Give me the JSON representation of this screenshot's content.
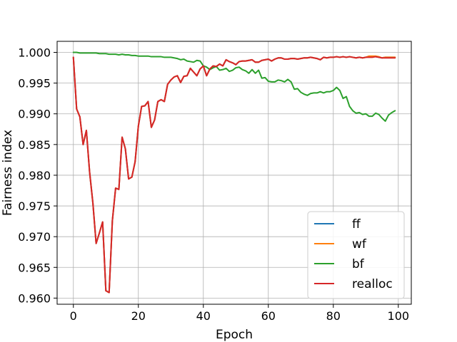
{
  "chart_data": {
    "type": "line",
    "title": "",
    "xlabel": "Epoch",
    "ylabel": "Fairness index",
    "xlim": [
      -5,
      104
    ],
    "ylim": [
      0.959,
      1.0018
    ],
    "xticks": [
      0,
      20,
      40,
      60,
      80,
      100
    ],
    "yticks": [
      0.96,
      0.965,
      0.97,
      0.975,
      0.98,
      0.985,
      0.99,
      0.995,
      1.0
    ],
    "ytick_labels": [
      "0.960",
      "0.965",
      "0.970",
      "0.975",
      "0.980",
      "0.985",
      "0.990",
      "0.995",
      "1.000"
    ],
    "grid": true,
    "legend_position": "lower-right",
    "series": [
      {
        "name": "ff",
        "color": "#1f77b4",
        "x": [
          0,
          1,
          2,
          3,
          4,
          5,
          6,
          7,
          8,
          9,
          10,
          11,
          12,
          13,
          14,
          15,
          16,
          17,
          18,
          19,
          20,
          21,
          22,
          23,
          24,
          25,
          26,
          27,
          28,
          29,
          30,
          31,
          32,
          33,
          34,
          35,
          36,
          37,
          38,
          39,
          40,
          41,
          42,
          43,
          44,
          45,
          46,
          47,
          48,
          49,
          50,
          51,
          52,
          53,
          54,
          55,
          56,
          57,
          58,
          59,
          60,
          61,
          62,
          63,
          64,
          65,
          66,
          67,
          68,
          69,
          70,
          71,
          72,
          73,
          74,
          75,
          76,
          77,
          78,
          79,
          80,
          81,
          82,
          83,
          84,
          85,
          86,
          87,
          88,
          89,
          90,
          91,
          92,
          93,
          94,
          95,
          96,
          97,
          98,
          99
        ],
        "y": [
          0.9992,
          0.9908,
          0.9895,
          0.985,
          0.9873,
          0.9805,
          0.9755,
          0.9689,
          0.9706,
          0.9724,
          0.9612,
          0.9609,
          0.9726,
          0.9779,
          0.9777,
          0.9862,
          0.9843,
          0.9794,
          0.9797,
          0.9822,
          0.988,
          0.9912,
          0.9913,
          0.992,
          0.9878,
          0.989,
          0.992,
          0.9923,
          0.992,
          0.9948,
          0.9955,
          0.996,
          0.9962,
          0.9951,
          0.9961,
          0.9962,
          0.9974,
          0.9968,
          0.9962,
          0.9973,
          0.9978,
          0.9962,
          0.9973,
          0.9978,
          0.9977,
          0.9981,
          0.9978,
          0.9988,
          0.9985,
          0.9983,
          0.998,
          0.9985,
          0.9986,
          0.9986,
          0.9987,
          0.9988,
          0.9984,
          0.9984,
          0.9987,
          0.9988,
          0.9989,
          0.9986,
          0.9989,
          0.9991,
          0.9991,
          0.9989,
          0.9989,
          0.999,
          0.999,
          0.9989,
          0.999,
          0.9991,
          0.9991,
          0.9992,
          0.9991,
          0.999,
          0.9988,
          0.9992,
          0.9991,
          0.9992,
          0.9992,
          0.9993,
          0.9992,
          0.9993,
          0.9992,
          0.9993,
          0.9992,
          0.9991,
          0.9992,
          0.9991,
          0.9992,
          0.9993,
          0.9993,
          0.9993,
          0.9992,
          0.9991,
          0.9992,
          0.9992,
          0.9992,
          0.9992
        ]
      },
      {
        "name": "wf",
        "color": "#ff7f0e",
        "x": [
          0,
          1,
          2,
          3,
          4,
          5,
          6,
          7,
          8,
          9,
          10,
          11,
          12,
          13,
          14,
          15,
          16,
          17,
          18,
          19,
          20,
          21,
          22,
          23,
          24,
          25,
          26,
          27,
          28,
          29,
          30,
          31,
          32,
          33,
          34,
          35,
          36,
          37,
          38,
          39,
          40,
          41,
          42,
          43,
          44,
          45,
          46,
          47,
          48,
          49,
          50,
          51,
          52,
          53,
          54,
          55,
          56,
          57,
          58,
          59,
          60,
          61,
          62,
          63,
          64,
          65,
          66,
          67,
          68,
          69,
          70,
          71,
          72,
          73,
          74,
          75,
          76,
          77,
          78,
          79,
          80,
          81,
          82,
          83,
          84,
          85,
          86,
          87,
          88,
          89,
          90,
          91,
          92,
          93,
          94,
          95,
          96,
          97,
          98,
          99
        ],
        "y": [
          0.9992,
          0.9908,
          0.9895,
          0.985,
          0.9873,
          0.9805,
          0.9755,
          0.9689,
          0.9706,
          0.9724,
          0.9612,
          0.9609,
          0.9726,
          0.9779,
          0.9777,
          0.9862,
          0.9843,
          0.9794,
          0.9797,
          0.9822,
          0.988,
          0.9912,
          0.9913,
          0.992,
          0.9878,
          0.989,
          0.992,
          0.9923,
          0.992,
          0.9948,
          0.9955,
          0.996,
          0.9962,
          0.9951,
          0.9961,
          0.9962,
          0.9974,
          0.9968,
          0.9962,
          0.9973,
          0.9978,
          0.9962,
          0.9973,
          0.9978,
          0.9977,
          0.9981,
          0.9978,
          0.9988,
          0.9985,
          0.9983,
          0.998,
          0.9985,
          0.9986,
          0.9986,
          0.9987,
          0.9988,
          0.9984,
          0.9984,
          0.9987,
          0.9988,
          0.9989,
          0.9986,
          0.9989,
          0.9991,
          0.9991,
          0.9989,
          0.9989,
          0.999,
          0.999,
          0.9989,
          0.999,
          0.9991,
          0.9991,
          0.9992,
          0.9991,
          0.999,
          0.9988,
          0.9992,
          0.9991,
          0.9992,
          0.9992,
          0.9993,
          0.9992,
          0.9993,
          0.9992,
          0.9993,
          0.9992,
          0.9991,
          0.9992,
          0.9991,
          0.9992,
          0.9994,
          0.9994,
          0.9994,
          0.9993,
          0.9991,
          0.9992,
          0.9992,
          0.9992,
          0.9992
        ]
      },
      {
        "name": "bf",
        "color": "#2ca02c",
        "x": [
          0,
          1,
          2,
          3,
          4,
          5,
          6,
          7,
          8,
          9,
          10,
          11,
          12,
          13,
          14,
          15,
          16,
          17,
          18,
          19,
          20,
          21,
          22,
          23,
          24,
          25,
          26,
          27,
          28,
          29,
          30,
          31,
          32,
          33,
          34,
          35,
          36,
          37,
          38,
          39,
          40,
          41,
          42,
          43,
          44,
          45,
          46,
          47,
          48,
          49,
          50,
          51,
          52,
          53,
          54,
          55,
          56,
          57,
          58,
          59,
          60,
          61,
          62,
          63,
          64,
          65,
          66,
          67,
          68,
          69,
          70,
          71,
          72,
          73,
          74,
          75,
          76,
          77,
          78,
          79,
          80,
          81,
          82,
          83,
          84,
          85,
          86,
          87,
          88,
          89,
          90,
          91,
          92,
          93,
          94,
          95,
          96,
          97,
          98,
          99
        ],
        "y": [
          1.0,
          1.0,
          0.9999,
          0.9999,
          0.9999,
          0.9999,
          0.9999,
          0.9999,
          0.9998,
          0.9998,
          0.9998,
          0.9997,
          0.9997,
          0.9997,
          0.9996,
          0.9997,
          0.9996,
          0.9996,
          0.9995,
          0.9995,
          0.9994,
          0.9994,
          0.9994,
          0.9994,
          0.9993,
          0.9993,
          0.9993,
          0.9993,
          0.9992,
          0.9992,
          0.9992,
          0.9991,
          0.999,
          0.9988,
          0.9989,
          0.9986,
          0.9985,
          0.9984,
          0.9987,
          0.9986,
          0.9978,
          0.9976,
          0.9972,
          0.9975,
          0.9977,
          0.9971,
          0.9972,
          0.9974,
          0.9969,
          0.9971,
          0.9975,
          0.9976,
          0.9972,
          0.997,
          0.9966,
          0.9972,
          0.9966,
          0.9971,
          0.9958,
          0.9959,
          0.9953,
          0.9952,
          0.9952,
          0.9955,
          0.9954,
          0.9952,
          0.9956,
          0.9952,
          0.994,
          0.9941,
          0.9935,
          0.9932,
          0.993,
          0.9933,
          0.9934,
          0.9934,
          0.9936,
          0.9934,
          0.9936,
          0.9936,
          0.9938,
          0.9943,
          0.9938,
          0.9925,
          0.9928,
          0.9912,
          0.9905,
          0.9901,
          0.9902,
          0.9899,
          0.99,
          0.9896,
          0.9896,
          0.9901,
          0.9899,
          0.9893,
          0.9888,
          0.9898,
          0.9902,
          0.9905
        ]
      },
      {
        "name": "realloc",
        "color": "#d62728",
        "x": [
          0,
          1,
          2,
          3,
          4,
          5,
          6,
          7,
          8,
          9,
          10,
          11,
          12,
          13,
          14,
          15,
          16,
          17,
          18,
          19,
          20,
          21,
          22,
          23,
          24,
          25,
          26,
          27,
          28,
          29,
          30,
          31,
          32,
          33,
          34,
          35,
          36,
          37,
          38,
          39,
          40,
          41,
          42,
          43,
          44,
          45,
          46,
          47,
          48,
          49,
          50,
          51,
          52,
          53,
          54,
          55,
          56,
          57,
          58,
          59,
          60,
          61,
          62,
          63,
          64,
          65,
          66,
          67,
          68,
          69,
          70,
          71,
          72,
          73,
          74,
          75,
          76,
          77,
          78,
          79,
          80,
          81,
          82,
          83,
          84,
          85,
          86,
          87,
          88,
          89,
          90,
          91,
          92,
          93,
          94,
          95,
          96,
          97,
          98,
          99
        ],
        "y": [
          0.9992,
          0.9908,
          0.9895,
          0.985,
          0.9873,
          0.9805,
          0.9755,
          0.9689,
          0.9706,
          0.9724,
          0.9612,
          0.9609,
          0.9726,
          0.9779,
          0.9777,
          0.9862,
          0.9843,
          0.9794,
          0.9797,
          0.9822,
          0.988,
          0.9912,
          0.9913,
          0.992,
          0.9878,
          0.989,
          0.992,
          0.9923,
          0.992,
          0.9948,
          0.9955,
          0.996,
          0.9962,
          0.9951,
          0.9961,
          0.9962,
          0.9974,
          0.9968,
          0.9962,
          0.9973,
          0.9978,
          0.9962,
          0.9973,
          0.9978,
          0.9977,
          0.9981,
          0.9978,
          0.9988,
          0.9985,
          0.9983,
          0.998,
          0.9985,
          0.9986,
          0.9986,
          0.9987,
          0.9988,
          0.9984,
          0.9984,
          0.9987,
          0.9988,
          0.9989,
          0.9986,
          0.9989,
          0.9991,
          0.9991,
          0.9989,
          0.9989,
          0.999,
          0.999,
          0.9989,
          0.999,
          0.9991,
          0.9991,
          0.9992,
          0.9991,
          0.999,
          0.9988,
          0.9992,
          0.9991,
          0.9992,
          0.9992,
          0.9993,
          0.9992,
          0.9993,
          0.9992,
          0.9993,
          0.9992,
          0.9991,
          0.9992,
          0.9991,
          0.9992,
          0.9992,
          0.9992,
          0.9993,
          0.9992,
          0.9991,
          0.9991,
          0.9991,
          0.9991,
          0.9991
        ]
      }
    ]
  }
}
